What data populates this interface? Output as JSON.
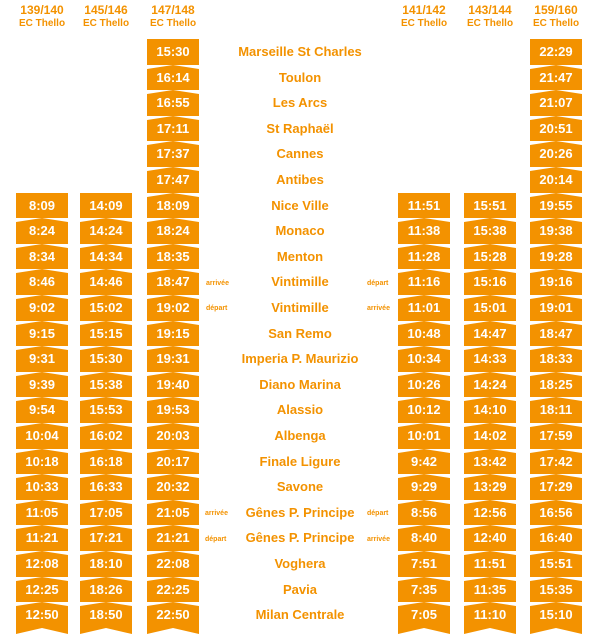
{
  "columns": [
    {
      "id": "c139",
      "number": "139/140",
      "operator": "EC Thello",
      "times": [
        "",
        "",
        "",
        "",
        "",
        "",
        "8:09",
        "8:24",
        "8:34",
        "8:46",
        "9:02",
        "9:15",
        "9:31",
        "9:39",
        "9:54",
        "10:04",
        "10:18",
        "10:33",
        "11:05",
        "11:21",
        "12:08",
        "12:25",
        "12:50"
      ]
    },
    {
      "id": "c145",
      "number": "145/146",
      "operator": "EC Thello",
      "times": [
        "",
        "",
        "",
        "",
        "",
        "",
        "14:09",
        "14:24",
        "14:34",
        "14:46",
        "15:02",
        "15:15",
        "15:30",
        "15:38",
        "15:53",
        "16:02",
        "16:18",
        "16:33",
        "17:05",
        "17:21",
        "18:10",
        "18:26",
        "18:50"
      ]
    },
    {
      "id": "c147",
      "number": "147/148",
      "operator": "EC Thello",
      "times": [
        "15:30",
        "16:14",
        "16:55",
        "17:11",
        "17:37",
        "17:47",
        "18:09",
        "18:24",
        "18:35",
        "18:47",
        "19:02",
        "19:15",
        "19:31",
        "19:40",
        "19:53",
        "20:03",
        "20:17",
        "20:32",
        "21:05",
        "21:21",
        "22:08",
        "22:25",
        "22:50"
      ]
    },
    {
      "id": "c141",
      "number": "141/142",
      "operator": "EC Thello",
      "times": [
        "",
        "",
        "",
        "",
        "",
        "",
        "11:51",
        "11:38",
        "11:28",
        "11:16",
        "11:01",
        "10:48",
        "10:34",
        "10:26",
        "10:12",
        "10:01",
        "9:42",
        "9:29",
        "8:56",
        "8:40",
        "7:51",
        "7:35",
        "7:05"
      ]
    },
    {
      "id": "c143",
      "number": "143/144",
      "operator": "EC Thello",
      "times": [
        "",
        "",
        "",
        "",
        "",
        "",
        "15:51",
        "15:38",
        "15:28",
        "15:16",
        "15:01",
        "14:47",
        "14:33",
        "14:24",
        "14:10",
        "14:02",
        "13:42",
        "13:29",
        "12:56",
        "12:40",
        "11:51",
        "11:35",
        "11:10"
      ]
    },
    {
      "id": "c159",
      "number": "159/160",
      "operator": "EC Thello",
      "times": [
        "22:29",
        "21:47",
        "21:07",
        "20:51",
        "20:26",
        "20:14",
        "19:55",
        "19:38",
        "19:28",
        "19:16",
        "19:01",
        "18:47",
        "18:33",
        "18:25",
        "18:11",
        "17:59",
        "17:42",
        "17:29",
        "16:56",
        "16:40",
        "15:51",
        "15:35",
        "15:10"
      ]
    }
  ],
  "stations": [
    "Marseille St Charles",
    "Toulon",
    "Les Arcs",
    "St Raphaël",
    "Cannes",
    "Antibes",
    "Nice Ville",
    "Monaco",
    "Menton",
    "Vintimille",
    "Vintimille",
    "San Remo",
    "Imperia P. Maurizio",
    "Diano Marina",
    "Alassio",
    "Albenga",
    "Finale Ligure",
    "Savone",
    "Gênes P. Principe",
    "Gênes P. Principe",
    "Voghera",
    "Pavia",
    "Milan Centrale"
  ],
  "notes": {
    "vintimille_arr_left": "arrivée",
    "vintimille_dep_right": "départ",
    "vintimille_dep_left": "départ",
    "vintimille_arr_right": "arrivée",
    "genes_arr_left": "arrivée",
    "genes_dep_right": "départ",
    "genes_dep_left": "départ",
    "genes_arr_right": "arrivée"
  },
  "colors": {
    "accent": "#f39200",
    "background": "#ffffff",
    "text_on_accent": "#ffffff"
  }
}
